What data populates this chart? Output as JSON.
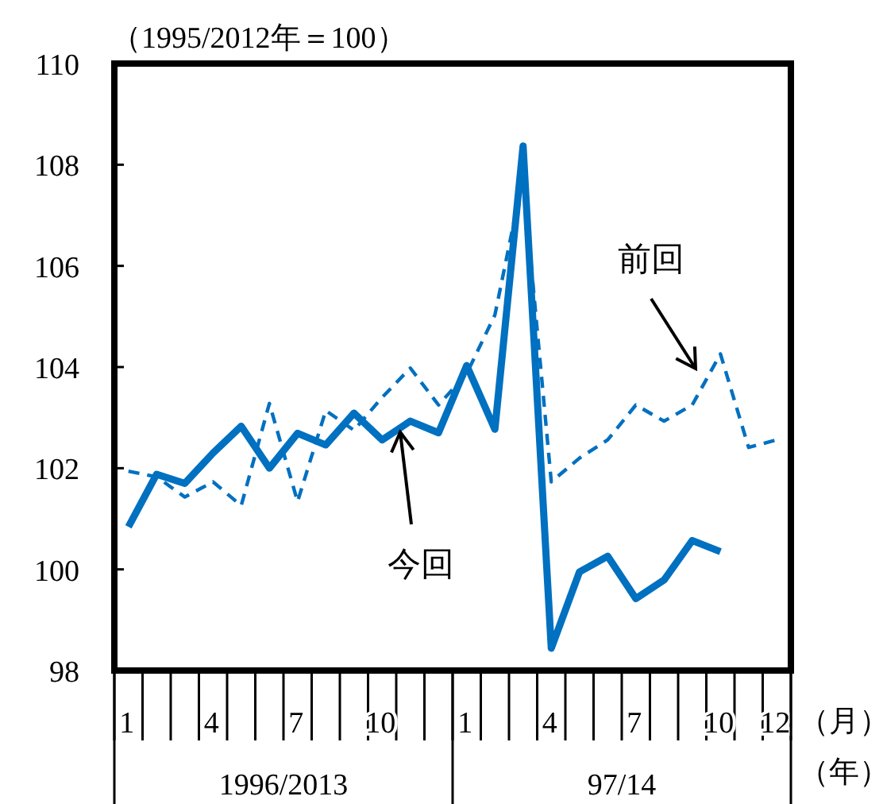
{
  "chart_data": {
    "type": "line",
    "ylabel": "（1995/2012年＝100）",
    "xlabel": "（月）",
    "categories": [
      "1",
      null,
      null,
      "4",
      null,
      null,
      "7",
      null,
      null,
      "10",
      null,
      null,
      "1",
      null,
      null,
      "4",
      null,
      null,
      "7",
      null,
      null,
      "10",
      null,
      "12"
    ],
    "series": [
      {
        "name": "今回",
        "color": "#0070c0",
        "line_style": "solid",
        "values": [
          100.84,
          101.88,
          101.7,
          102.3,
          102.83,
          102.0,
          102.69,
          102.46,
          103.09,
          102.56,
          102.93,
          102.7,
          104.03,
          102.77,
          108.37,
          98.44,
          99.95,
          100.26,
          99.42,
          99.79,
          100.57,
          100.35,
          null,
          null
        ]
      },
      {
        "name": "前回",
        "color": "#0070c0",
        "line_style": "dashed",
        "values": [
          101.94,
          101.83,
          101.43,
          101.73,
          101.26,
          103.28,
          101.34,
          103.14,
          102.75,
          103.4,
          103.98,
          103.25,
          103.87,
          105.03,
          107.75,
          101.73,
          102.2,
          102.56,
          103.25,
          102.93,
          103.25,
          104.26,
          102.41,
          102.56
        ]
      }
    ],
    "ylim": [
      98,
      110
    ],
    "yticks": [
      98,
      100,
      102,
      104,
      106,
      108,
      110
    ],
    "grid": false,
    "marker": "none",
    "annotations": [
      "1996/2013",
      "97/14",
      "（年）"
    ]
  }
}
